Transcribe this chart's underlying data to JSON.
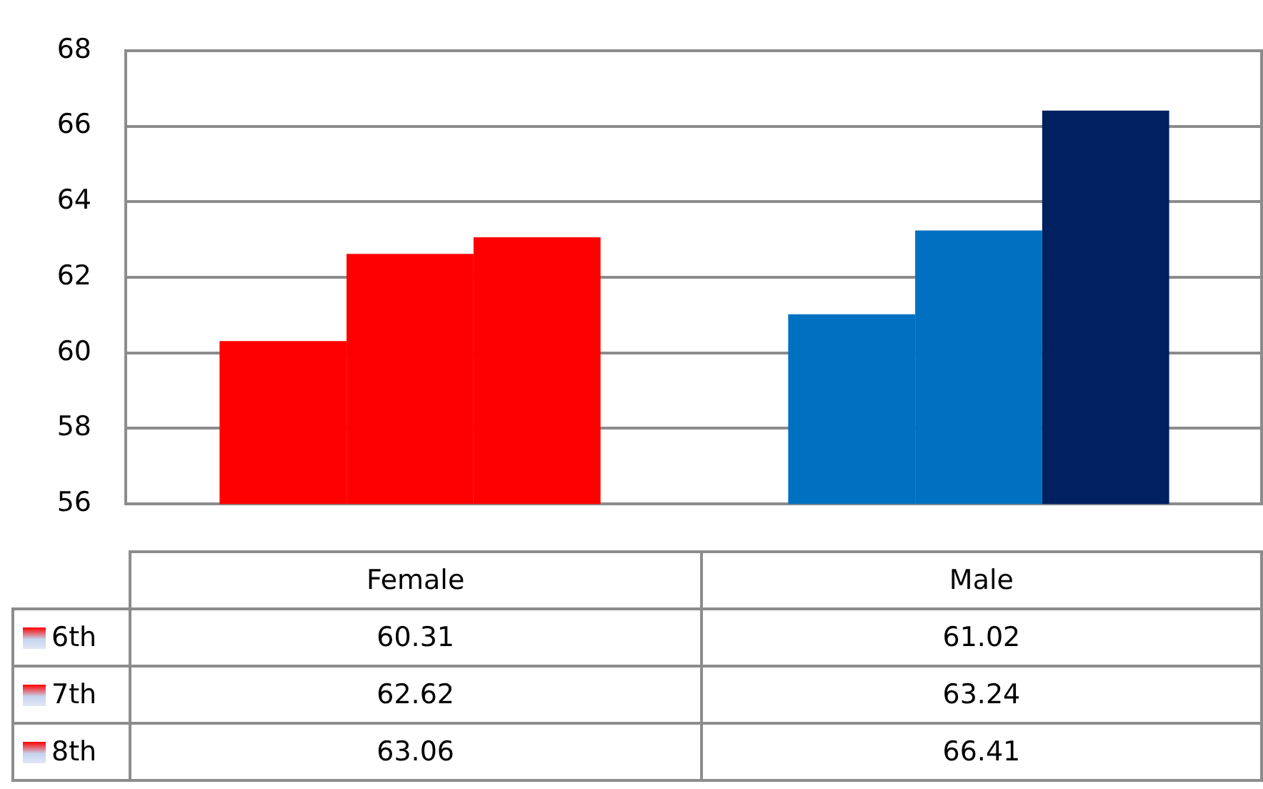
{
  "chart_data": {
    "type": "bar",
    "categories": [
      "Female",
      "Male"
    ],
    "series": [
      {
        "name": "6th",
        "colors": [
          "#ff0000",
          "#0070c0"
        ],
        "values": [
          60.31,
          61.02
        ]
      },
      {
        "name": "7th",
        "colors": [
          "#ff0000",
          "#0070c0"
        ],
        "values": [
          62.62,
          63.24
        ]
      },
      {
        "name": "8th",
        "colors": [
          "#ff0000",
          "#002060"
        ],
        "values": [
          63.06,
          66.41
        ]
      }
    ],
    "ylim": [
      56,
      68
    ],
    "yticks": [
      56,
      58,
      60,
      62,
      64,
      66,
      68
    ],
    "grid": "y",
    "legend": "bottom left",
    "data_labels": true
  }
}
